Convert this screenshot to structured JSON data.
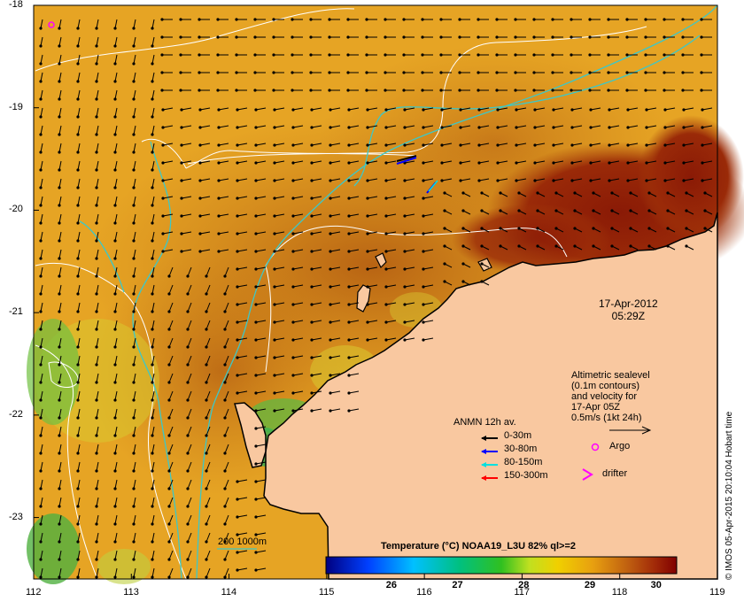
{
  "timestamp": {
    "date": "17-Apr-2012",
    "time": "05:29Z"
  },
  "altimetry_note": [
    "Altimetric sealevel",
    "(0.1m contours)",
    "and velocity for",
    "17-Apr 05Z",
    "0.5m/s (1kt 24h)"
  ],
  "anmn": {
    "title": "ANMN 12h av.",
    "items": [
      {
        "label": "0-30m",
        "color": "#000000"
      },
      {
        "label": "30-80m",
        "color": "#0000ff"
      },
      {
        "label": "80-150m",
        "color": "#00e0e0"
      },
      {
        "label": "150-300m",
        "color": "#ff0000"
      }
    ]
  },
  "markers": {
    "argo": "Argo",
    "drifter": "drifter",
    "argo_color": "#ff00ff",
    "drifter_color": "#ff00ff"
  },
  "bathymetry_label": "200  1000m",
  "colorbar": {
    "title": "Temperature (°C) NOAA19_L3U 82% ql>=2",
    "ticks": [
      "26",
      "27",
      "28",
      "29",
      "30"
    ],
    "tick_values": [
      26,
      27,
      28,
      29,
      30
    ],
    "range": [
      25.0,
      30.3
    ]
  },
  "axes": {
    "x_ticks": [
      "112",
      "113",
      "114",
      "115",
      "116",
      "117",
      "118",
      "119"
    ],
    "x_values": [
      112,
      113,
      114,
      115,
      116,
      117,
      118,
      119
    ],
    "y_ticks": [
      "-18",
      "-19",
      "-20",
      "-21",
      "-22",
      "-23"
    ],
    "y_values": [
      -18,
      -19,
      -20,
      -21,
      -22,
      -23
    ],
    "lon_range": [
      112,
      119
    ],
    "lat_range": [
      -23.6,
      -18
    ]
  },
  "credit": "© IMOS 05-Apr-2015 20:10:04 Hobart time",
  "colors": {
    "land": "#f9c8a0",
    "coastline": "#000000",
    "sst_warm": "#b55a0c",
    "sst_hot": "#8e1a06",
    "sst_cool": "#e0a020",
    "contour": "#ffffff",
    "isobath": "#3cc8c8"
  }
}
